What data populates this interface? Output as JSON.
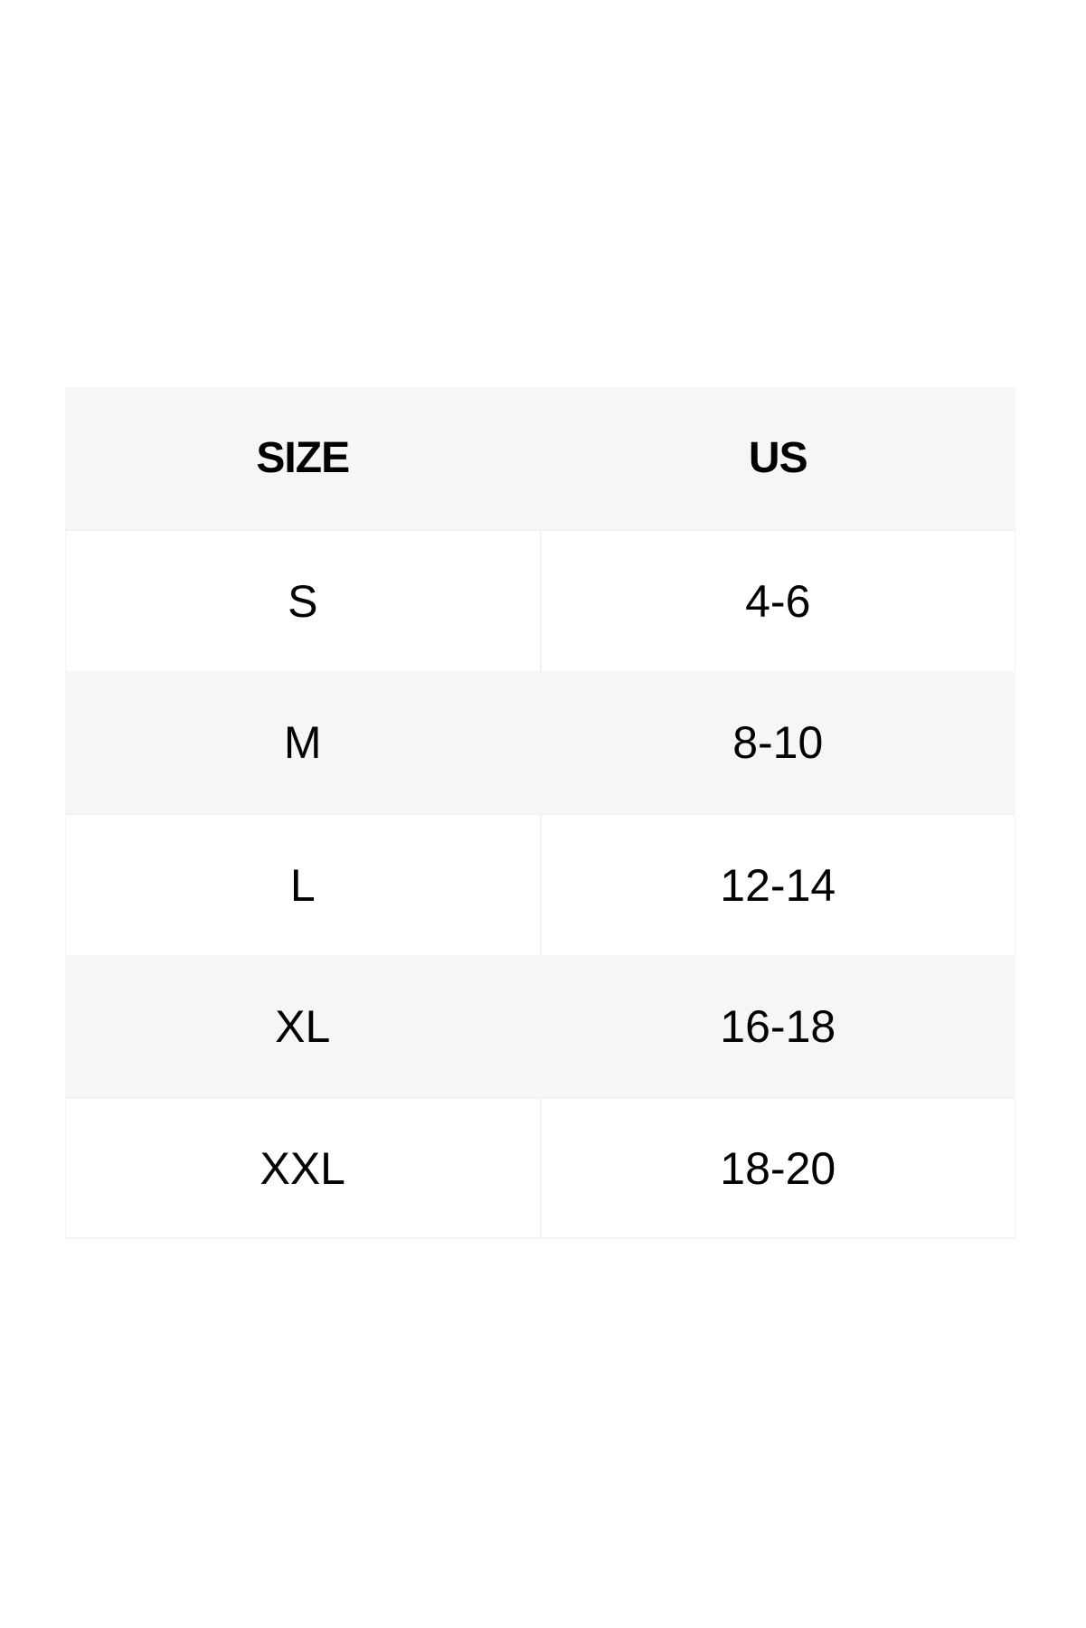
{
  "table": {
    "headers": [
      "SIZE",
      "US"
    ],
    "rows": [
      [
        "S",
        "4-6"
      ],
      [
        "M",
        "8-10"
      ],
      [
        "L",
        "12-14"
      ],
      [
        "XL",
        "16-18"
      ],
      [
        "XXL",
        "18-20"
      ]
    ]
  },
  "colors": {
    "shaded_row": "#f6f6f6",
    "plain_row": "#ffffff",
    "text": "#000000"
  }
}
